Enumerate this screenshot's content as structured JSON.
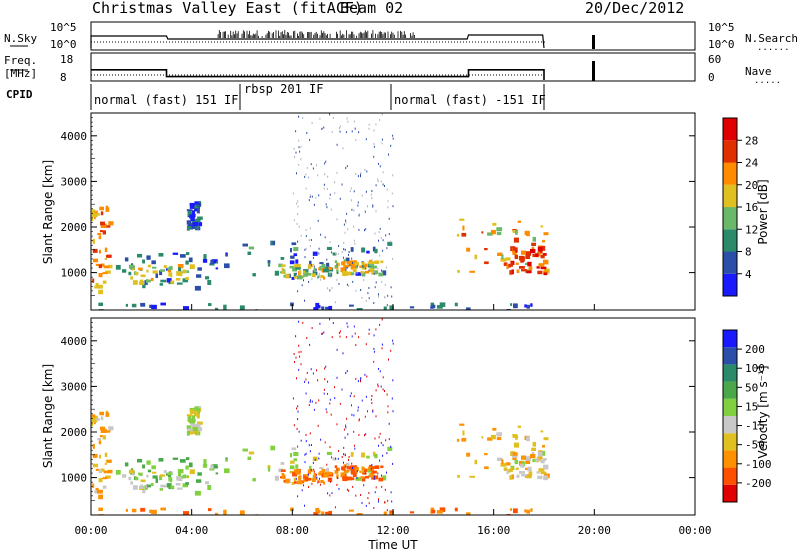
{
  "header": {
    "title": "Christmas Valley East (fitACF)",
    "beam": "Beam 02",
    "date": "20/Dec/2012"
  },
  "panels": {
    "nsky": {
      "label": "N.Sky",
      "ticks_left": [
        "10^5",
        "10^0"
      ],
      "ticks_right": [
        "10^5",
        "10^0"
      ],
      "right_label": "N.Search",
      "right_dots": "......"
    },
    "freq": {
      "label_1": "Freq.",
      "label_2": "[MHz]",
      "ticks_left": [
        "18",
        "8"
      ],
      "ticks_right": [
        "60",
        "0"
      ],
      "right_label": "Nave",
      "right_dots": "....."
    },
    "cpid": {
      "label": "CPID",
      "segments": [
        "normal (fast) 151 IF",
        "rbsp 201 IF",
        "normal (fast) -151 IF"
      ]
    }
  },
  "axes": {
    "ylabel": "Slant Range [km]",
    "y_ticks": [
      "1000",
      "2000",
      "3000",
      "4000"
    ],
    "x_ticks": [
      "00:00",
      "04:00",
      "08:00",
      "12:00",
      "16:00",
      "20:00",
      "00:00"
    ],
    "xlabel": "Time UT"
  },
  "colorbars": {
    "power": {
      "label": "Power [dB]",
      "ticks": [
        "4",
        "8",
        "12",
        "16",
        "20",
        "24",
        "28"
      ],
      "colors": [
        "#1a1aff",
        "#2b4ea8",
        "#2a8a6a",
        "#6ab86a",
        "#e0c020",
        "#ff8c00",
        "#e03000",
        "#e00000"
      ]
    },
    "velocity": {
      "label": "Velocity [m s⁻¹]",
      "ticks": [
        "200",
        "100",
        "50",
        "15",
        "-15",
        "-50",
        "-100",
        "-200"
      ],
      "colors": [
        "#1a1aff",
        "#2b4ea8",
        "#2a8a6a",
        "#4aa84a",
        "#80d040",
        "#c8c8c8",
        "#e0c020",
        "#ff9000",
        "#ff5000",
        "#e00000"
      ]
    }
  },
  "chart_data": {
    "type": "heatmap",
    "title": "Christmas Valley East (fitACF)",
    "xlabel": "Time UT",
    "ylabel": "Slant Range [km]",
    "xlim": [
      "00:00",
      "24:00"
    ],
    "ylim": [
      180,
      4500
    ],
    "cpid_segments": [
      {
        "label": "normal (fast) 151 IF",
        "start": 0,
        "end": 6.0
      },
      {
        "label": "rbsp 201 IF",
        "start": 6.0,
        "end": 12.0
      },
      {
        "label": "normal (fast) -151 IF",
        "start": 12.0,
        "end": 18.0
      }
    ],
    "freq_steps": [
      {
        "start": 0,
        "end": 3.0,
        "mhz": 14
      },
      {
        "start": 3.0,
        "end": 15.0,
        "mhz": 10
      },
      {
        "start": 15.0,
        "end": 18.0,
        "mhz": 14
      }
    ],
    "echo_regions": [
      {
        "t0": 0.0,
        "t1": 0.7,
        "r0": 600,
        "r1": 2500,
        "power": 24,
        "vel": -15
      },
      {
        "t0": 0.7,
        "t1": 5.5,
        "r0": 700,
        "r1": 1500,
        "power": 10,
        "vel": 30
      },
      {
        "t0": 1.5,
        "t1": 4.0,
        "r0": 800,
        "r1": 1200,
        "power": 18,
        "vel": 15
      },
      {
        "t0": 3.8,
        "t1": 4.3,
        "r0": 2000,
        "r1": 2600,
        "power": 8,
        "vel": 10
      },
      {
        "t0": 6.0,
        "t1": 11.8,
        "r0": 900,
        "r1": 1700,
        "power": 10,
        "vel": 10
      },
      {
        "t0": 7.5,
        "t1": 9.5,
        "r0": 900,
        "r1": 1200,
        "power": 18,
        "vel": -40
      },
      {
        "t0": 9.5,
        "t1": 11.5,
        "r0": 1000,
        "r1": 1300,
        "power": 20,
        "vel": -50
      },
      {
        "t0": 14.5,
        "t1": 18.0,
        "r0": 1000,
        "r1": 2200,
        "power": 22,
        "vel": -15
      },
      {
        "t0": 16.5,
        "t1": 18.0,
        "r0": 1000,
        "r1": 1600,
        "power": 28,
        "vel": 0
      },
      {
        "t0": 0.0,
        "t1": 18.0,
        "r0": 180,
        "r1": 350,
        "power": 8,
        "vel": -40
      }
    ]
  }
}
